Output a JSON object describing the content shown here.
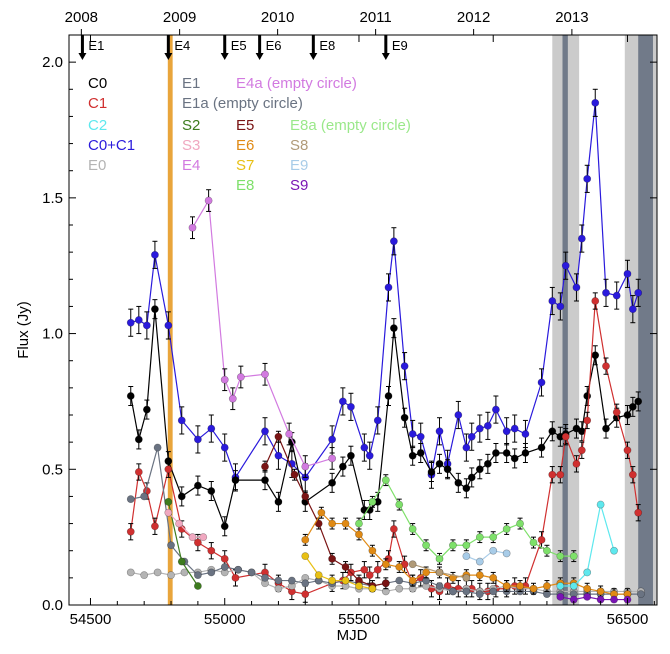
{
  "chart_data": {
    "type": "line",
    "title": "",
    "xlabel": "MJD",
    "ylabel": "Flux (Jy)",
    "xlim": [
      54420,
      56610
    ],
    "ylim": [
      0,
      2.1
    ],
    "xticks": [
      54500,
      55000,
      55500,
      56000,
      56500
    ],
    "yticks": [
      0.0,
      0.5,
      1.0,
      1.5,
      2.0
    ],
    "ytick_labels": [
      "0.0",
      "0.5",
      "1.0",
      "1.5",
      "2.0"
    ],
    "grid": false,
    "legend": "top-left",
    "years": [
      {
        "label": "2008",
        "mjd": 54466
      },
      {
        "label": "2009",
        "mjd": 54832
      },
      {
        "label": "2010",
        "mjd": 55197
      },
      {
        "label": "2011",
        "mjd": 55562
      },
      {
        "label": "2012",
        "mjd": 55927
      },
      {
        "label": "2013",
        "mjd": 56293
      }
    ],
    "events": [
      {
        "label": "E1",
        "mjd": 54470,
        "label_side": "right"
      },
      {
        "label": "E4",
        "mjd": 54790,
        "label_side": "right"
      },
      {
        "label": "E5",
        "mjd": 55000,
        "label_side": "right"
      },
      {
        "label": "E6",
        "mjd": 55130,
        "label_side": "right"
      },
      {
        "label": "E8",
        "mjd": 55330,
        "label_side": "right"
      },
      {
        "label": "E9",
        "mjd": 55600,
        "label_side": "right"
      }
    ],
    "shaded_regions": [
      {
        "from": 56220,
        "to": 56320,
        "color": "#c8c8c8"
      },
      {
        "from": 56490,
        "to": 56610,
        "color": "#c8c8c8"
      },
      {
        "from": 56540,
        "to": 56595,
        "color": "#6c7585"
      },
      {
        "from": 56258,
        "to": 56278,
        "color": "#6c7585"
      },
      {
        "from": 54788,
        "to": 54806,
        "color": "#e8a030"
      }
    ],
    "legend_entries": [
      {
        "label": "C0",
        "color": "#000000",
        "col": 0,
        "row": 0
      },
      {
        "label": "C1",
        "color": "#d03030",
        "col": 0,
        "row": 1
      },
      {
        "label": "C2",
        "color": "#5ee8ee",
        "col": 0,
        "row": 2
      },
      {
        "label": "C0+C1",
        "color": "#2a1adc",
        "col": 0,
        "row": 3
      },
      {
        "label": "E0",
        "color": "#b4b4b4",
        "col": 0,
        "row": 4
      },
      {
        "label": "E1",
        "color": "#6a7382",
        "col": 1,
        "row": 0
      },
      {
        "label": "E1a (empty circle)",
        "color": "#6a7382",
        "col": 1,
        "row": 1
      },
      {
        "label": "S2",
        "color": "#3d7c1e",
        "col": 1,
        "row": 2
      },
      {
        "label": "S3",
        "color": "#f0a8c0",
        "col": 1,
        "row": 3
      },
      {
        "label": "E4",
        "color": "#d27ae0",
        "col": 1,
        "row": 4
      },
      {
        "label": "E4a (empty circle)",
        "color": "#d27ae0",
        "col": 2,
        "row": 0
      },
      {
        "label": "E5",
        "color": "#7a1414",
        "col": 2,
        "row": 2
      },
      {
        "label": "E6",
        "color": "#e08a14",
        "col": 2,
        "row": 3
      },
      {
        "label": "S7",
        "color": "#e8c014",
        "col": 2,
        "row": 4
      },
      {
        "label": "E8",
        "color": "#7ee06a",
        "col": 2,
        "row": 5
      },
      {
        "label": "E8a (empty circle)",
        "color": "#9ae88a",
        "col": 3,
        "row": 2
      },
      {
        "label": "S8",
        "color": "#b09a78",
        "col": 3,
        "row": 3
      },
      {
        "label": "E9",
        "color": "#a8cce8",
        "col": 3,
        "row": 4
      },
      {
        "label": "S9",
        "color": "#7a14b4",
        "col": 3,
        "row": 5
      }
    ],
    "series": [
      {
        "name": "C0+C1",
        "color": "#2a1adc",
        "error": 0.05,
        "x": [
          54650,
          54680,
          54710,
          54740,
          54790,
          54840,
          54900,
          54950,
          55000,
          55040,
          55150,
          55200,
          55250,
          55300,
          55400,
          55440,
          55470,
          55520,
          55540,
          55570,
          55610,
          55630,
          55670,
          55700,
          55730,
          55770,
          55800,
          55830,
          55870,
          55900,
          55920,
          55950,
          55980,
          56010,
          56050,
          56080,
          56120,
          56180,
          56220,
          56250,
          56270,
          56310,
          56330,
          56350,
          56380,
          56420,
          56460,
          56500,
          56520,
          56540
        ],
        "y": [
          1.04,
          1.05,
          1.03,
          1.29,
          1.03,
          0.68,
          0.61,
          0.65,
          0.58,
          0.47,
          0.64,
          0.55,
          0.52,
          0.47,
          0.61,
          0.75,
          0.73,
          0.58,
          0.55,
          0.68,
          1.17,
          1.34,
          0.88,
          0.63,
          0.62,
          0.48,
          0.64,
          0.52,
          0.7,
          0.58,
          0.62,
          0.65,
          0.66,
          0.72,
          0.64,
          0.65,
          0.63,
          0.82,
          1.12,
          1.1,
          1.25,
          1.17,
          1.35,
          1.57,
          1.85,
          1.15,
          1.14,
          1.22,
          1.09,
          1.15
        ]
      },
      {
        "name": "C0",
        "color": "#000000",
        "error": 0.035,
        "x": [
          54650,
          54680,
          54710,
          54740,
          54790,
          54840,
          54900,
          54950,
          55000,
          55040,
          55150,
          55200,
          55250,
          55300,
          55400,
          55440,
          55470,
          55520,
          55540,
          55570,
          55610,
          55630,
          55670,
          55700,
          55730,
          55770,
          55800,
          55830,
          55870,
          55900,
          55920,
          55950,
          55980,
          56010,
          56050,
          56080,
          56120,
          56180,
          56220,
          56250,
          56270,
          56310,
          56330,
          56350,
          56380,
          56420,
          56460,
          56500,
          56520,
          56540
        ],
        "y": [
          0.77,
          0.61,
          0.72,
          1.09,
          0.53,
          0.4,
          0.44,
          0.42,
          0.29,
          0.46,
          0.46,
          0.38,
          0.6,
          0.38,
          0.45,
          0.51,
          0.55,
          0.35,
          0.35,
          0.38,
          0.77,
          1.02,
          0.69,
          0.55,
          0.56,
          0.49,
          0.52,
          0.5,
          0.45,
          0.43,
          0.47,
          0.5,
          0.52,
          0.56,
          0.56,
          0.54,
          0.56,
          0.58,
          0.64,
          0.62,
          0.63,
          0.65,
          0.64,
          0.77,
          0.92,
          0.65,
          0.69,
          0.7,
          0.73,
          0.75
        ]
      },
      {
        "name": "C1",
        "color": "#d03030",
        "error": 0.03,
        "x": [
          54650,
          54680,
          54710,
          54740,
          54790,
          54840,
          54900,
          54950,
          55000,
          55040,
          55150,
          55200,
          55250,
          55300,
          55400,
          55440,
          55470,
          55520,
          55540,
          55570,
          55610,
          55630,
          55670,
          55700,
          55730,
          55770,
          55800,
          55830,
          55870,
          55900,
          55920,
          55950,
          55980,
          56010,
          56050,
          56080,
          56120,
          56180,
          56220,
          56250,
          56270,
          56310,
          56330,
          56350,
          56380,
          56420,
          56460,
          56500,
          56520,
          56540
        ],
        "y": [
          0.27,
          0.49,
          0.42,
          0.29,
          0.5,
          0.28,
          0.23,
          0.2,
          0.17,
          0.1,
          0.12,
          0.08,
          0.05,
          0.04,
          0.08,
          0.09,
          0.12,
          0.13,
          0.11,
          0.13,
          0.17,
          0.28,
          0.15,
          0.08,
          0.1,
          0.06,
          0.05,
          0.07,
          0.06,
          0.06,
          0.06,
          0.05,
          0.05,
          0.06,
          0.06,
          0.07,
          0.07,
          0.24,
          0.48,
          0.48,
          0.62,
          0.52,
          0.57,
          0.68,
          1.12,
          0.88,
          0.71,
          0.57,
          0.48,
          0.34
        ]
      },
      {
        "name": "E0",
        "color": "#b4b4b4",
        "error": 0.0,
        "x": [
          54650,
          54700,
          54750,
          54800,
          54850,
          54900,
          54950,
          55000,
          55050,
          55100,
          55150,
          55200,
          55250,
          55300,
          55350,
          55400,
          55450,
          55500,
          55550,
          55600,
          55650,
          55700,
          55750,
          55800,
          55850,
          55900,
          55950,
          56000,
          56050,
          56100,
          56150,
          56200,
          56250,
          56300,
          56350,
          56400,
          56450,
          56500,
          56550
        ],
        "y": [
          0.12,
          0.11,
          0.12,
          0.11,
          0.12,
          0.12,
          0.13,
          0.12,
          0.13,
          0.12,
          0.08,
          0.06,
          0.07,
          0.1,
          0.09,
          0.07,
          0.07,
          0.06,
          0.06,
          0.05,
          0.06,
          0.06,
          0.07,
          0.06,
          0.05,
          0.06,
          0.05,
          0.06,
          0.07,
          0.06,
          0.06,
          0.05,
          0.05,
          0.05,
          0.05,
          0.05,
          0.05,
          0.05,
          0.05
        ]
      },
      {
        "name": "E1",
        "color": "#6a7382",
        "error": 0.0,
        "x": [
          54650,
          54700,
          54750,
          54800,
          54850,
          54900,
          54950,
          55000,
          55050,
          55100,
          55150,
          55200,
          55250,
          55300,
          55350,
          55400,
          55450,
          55500,
          55550,
          55600,
          55650,
          55700,
          55750,
          55800,
          55850,
          55900,
          55950,
          56000,
          56050,
          56100,
          56150,
          56200,
          56250,
          56300,
          56350,
          56400,
          56450,
          56500,
          56550
        ],
        "y": [
          0.39,
          0.4,
          0.58,
          0.22,
          0.16,
          0.11,
          0.12,
          0.14,
          0.13,
          0.12,
          0.1,
          0.09,
          0.09,
          0.08,
          0.09,
          0.08,
          0.09,
          0.08,
          0.07,
          0.08,
          0.09,
          0.08,
          0.09,
          0.07,
          0.05,
          0.05,
          0.04,
          0.05,
          0.05,
          0.05,
          0.05,
          0.04,
          0.04,
          0.04,
          0.04,
          0.04,
          0.04,
          0.04,
          0.04
        ]
      },
      {
        "name": "S2",
        "color": "#3d7c1e",
        "error": 0.0,
        "x": [
          54790,
          54840,
          54900
        ],
        "y": [
          0.38,
          0.16,
          0.07
        ]
      },
      {
        "name": "S3",
        "color": "#f0a8c0",
        "error": 0.0,
        "x": [
          54790,
          54830,
          54880,
          54920
        ],
        "y": [
          0.34,
          0.3,
          0.25,
          0.25
        ]
      },
      {
        "name": "E4",
        "color": "#d27ae0",
        "error": 0.04,
        "x": [
          54880,
          54940,
          55000,
          55030,
          55060,
          55150,
          55240,
          55300,
          55400
        ],
        "y": [
          1.39,
          1.49,
          0.83,
          0.76,
          0.84,
          0.85,
          0.63,
          0.51,
          0.54
        ]
      },
      {
        "name": "E5",
        "color": "#7a1414",
        "error": 0.02,
        "x": [
          55150,
          55200,
          55260,
          55300,
          55350,
          55400,
          55450,
          55500,
          55550,
          55600
        ],
        "y": [
          0.51,
          0.62,
          0.48,
          0.4,
          0.3,
          0.17,
          0.14,
          0.09,
          0.07,
          0.08
        ]
      },
      {
        "name": "E6",
        "color": "#e08a14",
        "error": 0.02,
        "x": [
          55300,
          55360,
          55400,
          55450,
          55500,
          55550,
          55600,
          55650,
          55700,
          55750,
          55800,
          55850,
          55900,
          55950,
          56000,
          56050,
          56100,
          56150,
          56200,
          56250,
          56300,
          56350,
          56400,
          56450,
          56500
        ],
        "y": [
          0.24,
          0.34,
          0.3,
          0.3,
          0.26,
          0.2,
          0.15,
          0.14,
          0.09,
          0.12,
          0.12,
          0.1,
          0.11,
          0.11,
          0.1,
          0.07,
          0.07,
          0.06,
          0.07,
          0.08,
          0.08,
          0.06,
          0.05,
          0.04,
          0.04
        ]
      },
      {
        "name": "S7",
        "color": "#e8c014",
        "error": 0.0,
        "x": [
          55300,
          55350,
          55400,
          55450,
          55500,
          55550
        ],
        "y": [
          0.18,
          0.11,
          0.09,
          0.09,
          0.07,
          0.06
        ]
      },
      {
        "name": "E8",
        "color": "#7ee06a",
        "error": 0.02,
        "x": [
          55500,
          55550,
          55600,
          55650,
          55700,
          55750,
          55800,
          55850,
          55900,
          55950,
          56000,
          56050,
          56100,
          56150,
          56200,
          56250,
          56300
        ],
        "y": [
          0.3,
          0.38,
          0.46,
          0.37,
          0.28,
          0.22,
          0.17,
          0.22,
          0.22,
          0.25,
          0.25,
          0.28,
          0.3,
          0.23,
          0.2,
          0.18,
          0.18
        ]
      },
      {
        "name": "S8",
        "color": "#b09a78",
        "error": 0.0,
        "x": [
          55700,
          55800,
          55900
        ],
        "y": [
          0.15,
          0.12,
          0.1
        ]
      },
      {
        "name": "E9",
        "color": "#a8cce8",
        "error": 0.0,
        "x": [
          55900,
          55950,
          56000,
          56050
        ],
        "y": [
          0.18,
          0.16,
          0.2,
          0.19
        ]
      },
      {
        "name": "C2",
        "color": "#5ee8ee",
        "error": 0.0,
        "x": [
          56250,
          56300,
          56350,
          56400,
          56450
        ],
        "y": [
          0.07,
          0.07,
          0.12,
          0.37,
          0.2
        ]
      },
      {
        "name": "S9",
        "color": "#7a14b4",
        "error": 0.0,
        "x": [
          56250,
          56300,
          56350,
          56400,
          56450,
          56500
        ],
        "y": [
          0.03,
          0.02,
          0.03,
          0.02,
          0.02,
          0.02
        ]
      }
    ]
  }
}
